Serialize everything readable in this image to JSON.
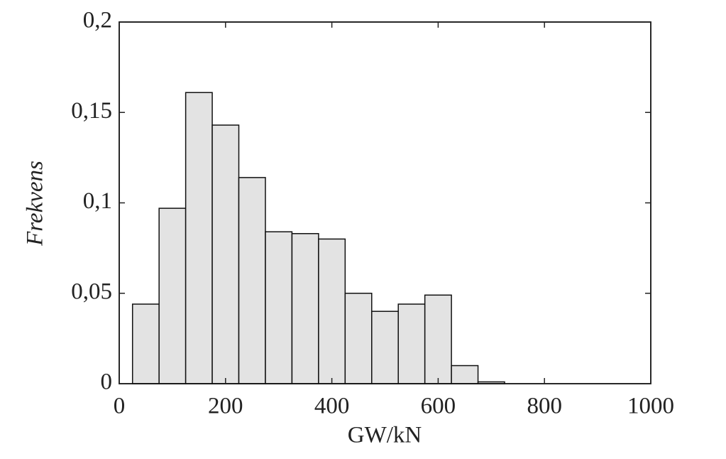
{
  "chart_data": {
    "type": "histogram",
    "x_label": "GW/kN",
    "y_label": "Frekvens",
    "bins": [
      25,
      75,
      125,
      175,
      225,
      275,
      325,
      375,
      425,
      475,
      525,
      575,
      625,
      675,
      725
    ],
    "counts": [
      0.044,
      0.097,
      0.161,
      0.143,
      0.114,
      0.084,
      0.083,
      0.08,
      0.05,
      0.04,
      0.044,
      0.049,
      0.01,
      0.001
    ],
    "color": "#e3e3e3",
    "xlim": [
      0,
      1000
    ],
    "xticks": [
      0,
      200,
      400,
      600,
      800,
      1000
    ],
    "ylim": [
      0,
      0.2
    ],
    "yticks": [
      0,
      {
        "value": 0.05,
        "label": "0,05"
      },
      {
        "value": 0.1,
        "label": "0,1"
      },
      {
        "value": 0.15,
        "label": "0,15"
      },
      {
        "value": 0.2,
        "label": "0,2"
      }
    ]
  }
}
